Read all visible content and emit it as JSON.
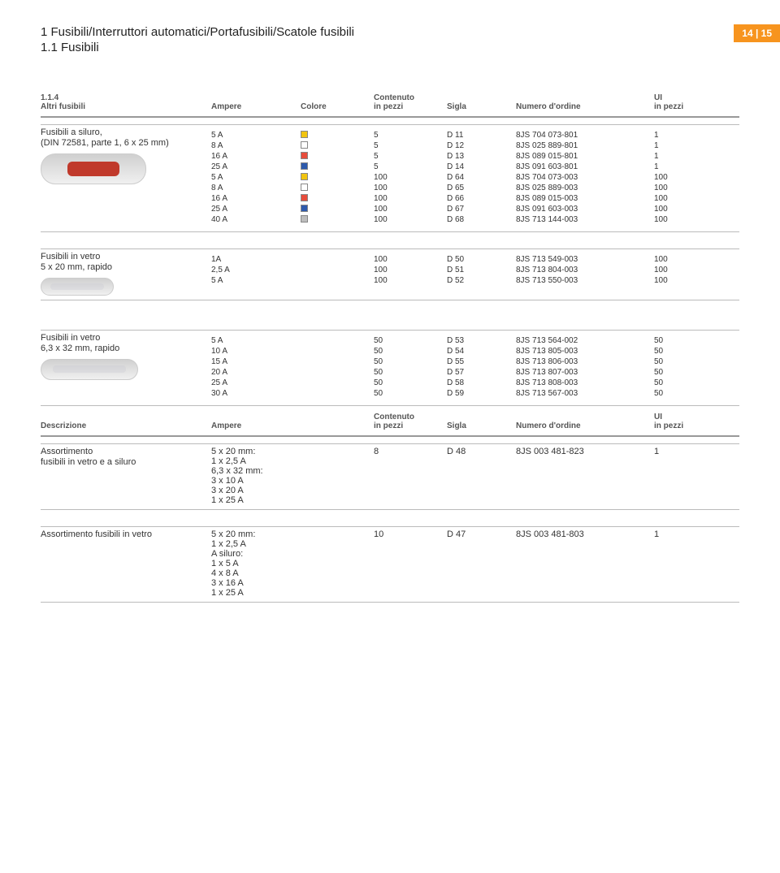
{
  "page": {
    "title": "1 Fusibili/Interruttori automatici/Portafusibili/Scatole fusibili",
    "subtitle": "1.1 Fusibili",
    "page_num": "14 | 15"
  },
  "headers": {
    "section1_label": "1.1.4",
    "section1_sub": "Altri fusibili",
    "ampere": "Ampere",
    "colore": "Colore",
    "contenuto": "Contenuto",
    "contenuto_sub": "in pezzi",
    "sigla": "Sigla",
    "numero": "Numero d'ordine",
    "ui": "UI",
    "ui_sub": "in pezzi",
    "descrizione": "Descrizione"
  },
  "group1": {
    "title": "Fusibili a siluro,",
    "subtitle": "(DIN 72581, parte 1, 6 x 25 mm)",
    "rows": [
      {
        "a": "5 A",
        "c": "#f1c40f",
        "q": "5",
        "s": "D 11",
        "o": "8JS 704 073-801",
        "u": "1"
      },
      {
        "a": "8 A",
        "c": "#ffffff",
        "q": "5",
        "s": "D 12",
        "o": "8JS 025 889-801",
        "u": "1"
      },
      {
        "a": "16 A",
        "c": "#e74c3c",
        "q": "5",
        "s": "D 13",
        "o": "8JS 089 015-801",
        "u": "1"
      },
      {
        "a": "25 A",
        "c": "#2e5aac",
        "q": "5",
        "s": "D 14",
        "o": "8JS 091 603-801",
        "u": "1"
      },
      {
        "a": "5 A",
        "c": "#f1c40f",
        "q": "100",
        "s": "D 64",
        "o": "8JS 704 073-003",
        "u": "100"
      },
      {
        "a": "8 A",
        "c": "#ffffff",
        "q": "100",
        "s": "D 65",
        "o": "8JS 025 889-003",
        "u": "100"
      },
      {
        "a": "16 A",
        "c": "#e74c3c",
        "q": "100",
        "s": "D 66",
        "o": "8JS 089 015-003",
        "u": "100"
      },
      {
        "a": "25 A",
        "c": "#2e5aac",
        "q": "100",
        "s": "D 67",
        "o": "8JS 091 603-003",
        "u": "100"
      },
      {
        "a": "40 A",
        "c": "#bdbdbd",
        "q": "100",
        "s": "D 68",
        "o": "8JS 713 144-003",
        "u": "100"
      }
    ]
  },
  "group2": {
    "title": "Fusibili in vetro",
    "subtitle": "5 x 20 mm, rapido",
    "rows": [
      {
        "a": "1A",
        "q": "100",
        "s": "D 50",
        "o": "8JS 713 549-003",
        "u": "100"
      },
      {
        "a": "2,5 A",
        "q": "100",
        "s": "D 51",
        "o": "8JS 713 804-003",
        "u": "100"
      },
      {
        "a": "5 A",
        "q": "100",
        "s": "D 52",
        "o": "8JS 713 550-003",
        "u": "100"
      }
    ]
  },
  "group3": {
    "title": "Fusibili in vetro",
    "subtitle": "6,3 x 32 mm, rapido",
    "rows": [
      {
        "a": "5 A",
        "q": "50",
        "s": "D 53",
        "o": "8JS 713 564-002",
        "u": "50"
      },
      {
        "a": "10 A",
        "q": "50",
        "s": "D 54",
        "o": "8JS 713 805-003",
        "u": "50"
      },
      {
        "a": "15 A",
        "q": "50",
        "s": "D 55",
        "o": "8JS 713 806-003",
        "u": "50"
      },
      {
        "a": "20 A",
        "q": "50",
        "s": "D 57",
        "o": "8JS 713 807-003",
        "u": "50"
      },
      {
        "a": "25 A",
        "q": "50",
        "s": "D 58",
        "o": "8JS 713 808-003",
        "u": "50"
      },
      {
        "a": "30 A",
        "q": "50",
        "s": "D 59",
        "o": "8JS 713 567-003",
        "u": "50"
      }
    ]
  },
  "group4": {
    "title": "Assortimento",
    "subtitle": "fusibili in vetro e a siluro",
    "ampere_lines": [
      "5 x 20 mm:",
      "1 x 2,5 A",
      "6,3 x 32 mm:",
      "3 x 10 A",
      "3 x 20 A",
      "1 x 25 A"
    ],
    "q": "8",
    "s": "D 48",
    "o": "8JS 003 481-823",
    "u": "1"
  },
  "group5": {
    "title": "Assortimento fusibili in vetro",
    "ampere_lines": [
      "5 x 20 mm:",
      "1 x 2,5 A",
      "A siluro:",
      "1 x 5 A",
      "4 x 8 A",
      "3 x 16 A",
      "1 x 25 A"
    ],
    "q": "10",
    "s": "D 47",
    "o": "8JS 003 481-803",
    "u": "1"
  }
}
